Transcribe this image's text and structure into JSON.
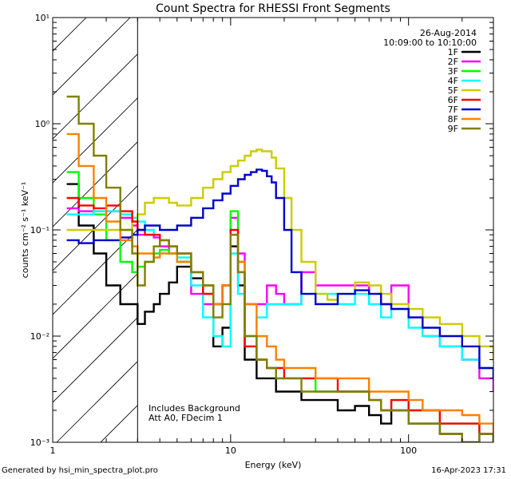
{
  "chart_data": {
    "type": "line",
    "title": "Count Spectra for RHESSI Front Segments",
    "xlabel": "Energy (keV)",
    "ylabel": "counts cm⁻² s⁻¹ keV⁻¹",
    "xscale": "log",
    "yscale": "log",
    "xlim": [
      1,
      300
    ],
    "ylim": [
      0.001,
      10
    ],
    "x_ticks": [
      {
        "v": 1,
        "label": "1"
      },
      {
        "v": 10,
        "label": "10"
      },
      {
        "v": 100,
        "label": "100"
      }
    ],
    "y_ticks": [
      {
        "v": 10,
        "label": "10¹"
      },
      {
        "v": 1,
        "label": "10⁰"
      },
      {
        "v": 0.1,
        "label": "10⁻¹"
      },
      {
        "v": 0.01,
        "label": "10⁻²"
      },
      {
        "v": 0.001,
        "label": "10⁻³"
      }
    ],
    "date": "26-Aug-2014",
    "time_range": "10:09:00 to 10:10:00",
    "excluded_region_below_keV": 3,
    "annotations": [
      "Includes Background",
      "Att A0, FDecim 1"
    ],
    "series": [
      {
        "name": "1F",
        "color": "#000000",
        "x": [
          1.2,
          1.4,
          1.7,
          2.0,
          2.4,
          2.8,
          3.0,
          3.3,
          3.7,
          4.0,
          4.5,
          5,
          6,
          7,
          8,
          9,
          10,
          11,
          12,
          14,
          16,
          18,
          20,
          25,
          30,
          40,
          50,
          60,
          70,
          80,
          100,
          120,
          150,
          200,
          250,
          300
        ],
        "y": [
          0.27,
          0.11,
          0.06,
          0.03,
          0.02,
          0.02,
          0.013,
          0.017,
          0.02,
          0.025,
          0.032,
          0.045,
          0.035,
          0.025,
          0.008,
          0.012,
          0.07,
          0.03,
          0.006,
          0.004,
          0.004,
          0.003,
          0.003,
          0.0025,
          0.0025,
          0.002,
          0.0022,
          0.0018,
          0.0015,
          0.002,
          0.0015,
          0.0015,
          0.0012,
          0.001,
          0.0012,
          0.001
        ]
      },
      {
        "name": "2F",
        "color": "#ff00ff",
        "x": [
          1.2,
          1.4,
          1.7,
          2.0,
          2.4,
          2.8,
          3.0,
          3.3,
          3.7,
          4.0,
          4.5,
          5,
          6,
          7,
          8,
          9,
          10,
          11,
          12,
          14,
          16,
          18,
          20,
          25,
          30,
          40,
          50,
          60,
          70,
          80,
          100,
          120,
          150,
          200,
          250,
          300
        ],
        "y": [
          0.16,
          0.15,
          0.15,
          0.15,
          0.13,
          0.11,
          0.09,
          0.09,
          0.085,
          0.07,
          0.06,
          0.05,
          0.025,
          0.02,
          0.02,
          0.03,
          0.13,
          0.06,
          0.02,
          0.02,
          0.03,
          0.025,
          0.02,
          0.04,
          0.03,
          0.03,
          0.03,
          0.025,
          0.02,
          0.03,
          0.015,
          0.01,
          0.008,
          0.006,
          0.004,
          0.003
        ]
      },
      {
        "name": "3F",
        "color": "#00ff00",
        "x": [
          1.2,
          1.4,
          1.7,
          2.0,
          2.4,
          2.8,
          3.0,
          3.3,
          3.7,
          4.0,
          4.5,
          5,
          6,
          7,
          8,
          9,
          10,
          11,
          12,
          14,
          16,
          18,
          20,
          25,
          30,
          40,
          50,
          60,
          70,
          80,
          100,
          120,
          150,
          200,
          250,
          300
        ],
        "y": [
          0.35,
          0.2,
          0.14,
          0.08,
          0.05,
          0.04,
          0.045,
          0.05,
          0.06,
          0.065,
          0.06,
          0.05,
          0.04,
          0.03,
          0.02,
          0.03,
          0.15,
          0.05,
          0.01,
          0.006,
          0.005,
          0.004,
          0.004,
          0.004,
          0.003,
          0.003,
          0.003,
          0.0025,
          0.002,
          0.0025,
          0.002,
          0.002,
          0.0015,
          0.0015,
          0.0012,
          0.001
        ]
      },
      {
        "name": "4F",
        "color": "#00ffff",
        "x": [
          1.2,
          1.4,
          1.7,
          2.0,
          2.4,
          2.8,
          3.0,
          3.3,
          3.7,
          4.0,
          4.5,
          5,
          6,
          7,
          8,
          9,
          10,
          11,
          12,
          14,
          16,
          18,
          20,
          25,
          30,
          40,
          50,
          60,
          70,
          80,
          100,
          120,
          150,
          200,
          250,
          300
        ],
        "y": [
          0.14,
          0.14,
          0.15,
          0.15,
          0.14,
          0.13,
          0.12,
          0.1,
          0.09,
          0.08,
          0.07,
          0.055,
          0.03,
          0.015,
          0.01,
          0.008,
          0.06,
          0.025,
          0.01,
          0.015,
          0.02,
          0.02,
          0.02,
          0.025,
          0.025,
          0.02,
          0.025,
          0.02,
          0.015,
          0.018,
          0.012,
          0.01,
          0.008,
          0.006,
          0.005,
          0.004
        ]
      },
      {
        "name": "5F",
        "color": "#cccc00",
        "x": [
          1.2,
          1.4,
          1.7,
          2.0,
          2.4,
          2.8,
          3.0,
          3.3,
          3.7,
          4.0,
          4.5,
          5,
          6,
          7,
          8,
          9,
          10,
          11,
          12,
          13,
          14,
          15,
          16,
          17,
          18,
          20,
          22,
          25,
          30,
          35,
          40,
          50,
          60,
          70,
          80,
          100,
          120,
          150,
          200,
          250,
          300
        ],
        "y": [
          0.1,
          0.1,
          0.1,
          0.1,
          0.1,
          0.12,
          0.14,
          0.18,
          0.2,
          0.2,
          0.18,
          0.17,
          0.2,
          0.25,
          0.3,
          0.35,
          0.4,
          0.45,
          0.5,
          0.55,
          0.57,
          0.55,
          0.55,
          0.48,
          0.38,
          0.2,
          0.1,
          0.05,
          0.025,
          0.022,
          0.025,
          0.032,
          0.03,
          0.025,
          0.02,
          0.018,
          0.015,
          0.013,
          0.01,
          0.008,
          0.006
        ]
      },
      {
        "name": "6F",
        "color": "#ff0000",
        "x": [
          1.2,
          1.4,
          1.7,
          2.0,
          2.4,
          2.8,
          3.0,
          3.3,
          3.7,
          4.0,
          4.5,
          5,
          6,
          7,
          8,
          9,
          10,
          11,
          12,
          14,
          16,
          18,
          20,
          25,
          30,
          40,
          50,
          60,
          70,
          80,
          100,
          120,
          150,
          200,
          250,
          300
        ],
        "y": [
          0.2,
          0.17,
          0.16,
          0.17,
          0.15,
          0.12,
          0.1,
          0.09,
          0.09,
          0.08,
          0.07,
          0.06,
          0.04,
          0.025,
          0.02,
          0.03,
          0.1,
          0.04,
          0.008,
          0.006,
          0.005,
          0.005,
          0.004,
          0.004,
          0.004,
          0.003,
          0.003,
          0.0025,
          0.002,
          0.0025,
          0.002,
          0.002,
          0.0015,
          0.0015,
          0.0012,
          0.001
        ]
      },
      {
        "name": "7F",
        "color": "#0000cc",
        "x": [
          1.2,
          1.4,
          1.7,
          2.0,
          2.4,
          2.8,
          3.0,
          3.3,
          3.7,
          4.0,
          4.5,
          5,
          6,
          7,
          8,
          9,
          10,
          11,
          12,
          13,
          14,
          15,
          16,
          17,
          18,
          20,
          22,
          25,
          30,
          35,
          40,
          50,
          60,
          70,
          80,
          100,
          120,
          150,
          200,
          250,
          300
        ],
        "y": [
          0.08,
          0.075,
          0.08,
          0.08,
          0.085,
          0.09,
          0.1,
          0.11,
          0.11,
          0.1,
          0.1,
          0.11,
          0.13,
          0.16,
          0.19,
          0.22,
          0.26,
          0.3,
          0.33,
          0.35,
          0.37,
          0.36,
          0.32,
          0.28,
          0.2,
          0.1,
          0.04,
          0.025,
          0.02,
          0.02,
          0.025,
          0.027,
          0.025,
          0.02,
          0.018,
          0.015,
          0.012,
          0.01,
          0.008,
          0.005,
          0.004
        ]
      },
      {
        "name": "8F",
        "color": "#ff8000",
        "x": [
          1.2,
          1.4,
          1.7,
          2.0,
          2.4,
          2.8,
          3.0,
          3.3,
          3.7,
          4.0,
          4.5,
          5,
          6,
          7,
          8,
          9,
          10,
          11,
          12,
          14,
          16,
          18,
          20,
          25,
          30,
          40,
          50,
          60,
          70,
          80,
          100,
          120,
          150,
          200,
          250,
          300
        ],
        "y": [
          0.8,
          0.4,
          0.2,
          0.12,
          0.08,
          0.07,
          0.06,
          0.06,
          0.055,
          0.06,
          0.06,
          0.05,
          0.04,
          0.03,
          0.02,
          0.03,
          0.09,
          0.05,
          0.02,
          0.01,
          0.008,
          0.006,
          0.005,
          0.005,
          0.004,
          0.004,
          0.004,
          0.003,
          0.003,
          0.003,
          0.0025,
          0.002,
          0.002,
          0.0018,
          0.0015,
          0.0012
        ]
      },
      {
        "name": "9F",
        "color": "#808000",
        "x": [
          1.2,
          1.4,
          1.7,
          2.0,
          2.4,
          2.8,
          3.0,
          3.3,
          3.7,
          4.0,
          4.5,
          5,
          6,
          7,
          8,
          9,
          10,
          11,
          12,
          14,
          16,
          18,
          20,
          25,
          30,
          40,
          50,
          60,
          70,
          80,
          100,
          120,
          150,
          200,
          250,
          300
        ],
        "y": [
          1.8,
          1.0,
          0.5,
          0.25,
          0.1,
          0.06,
          0.03,
          0.05,
          0.07,
          0.08,
          0.07,
          0.06,
          0.04,
          0.03,
          0.015,
          0.02,
          0.09,
          0.04,
          0.01,
          0.006,
          0.005,
          0.004,
          0.004,
          0.003,
          0.003,
          0.003,
          0.003,
          0.0025,
          0.002,
          0.002,
          0.0015,
          0.0015,
          0.0012,
          0.001,
          0.0012,
          0.001
        ]
      }
    ]
  },
  "footer": {
    "generated_by": "Generated by hsi_min_spectra_plot.pro",
    "timestamp": "16-Apr-2023 17:31"
  }
}
